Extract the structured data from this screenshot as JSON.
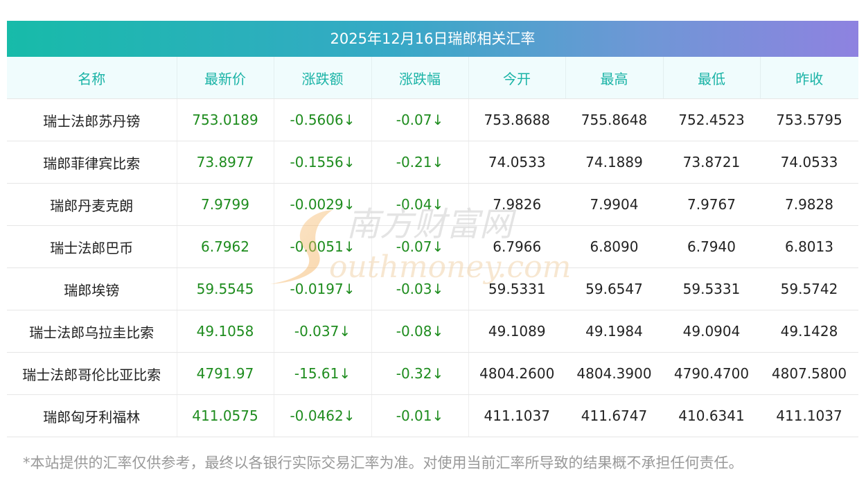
{
  "title": "2025年12月16日瑞郎相关汇率",
  "columns": [
    "名称",
    "最新价",
    "涨跌额",
    "涨跌幅",
    "今开",
    "最高",
    "最低",
    "昨收"
  ],
  "rows": [
    [
      "瑞士法郎苏丹镑",
      "753.0189",
      "-0.5606↓",
      "-0.07↓",
      "753.8688",
      "755.8648",
      "752.4523",
      "753.5795"
    ],
    [
      "瑞郎菲律宾比索",
      "73.8977",
      "-0.1556↓",
      "-0.21↓",
      "74.0533",
      "74.1889",
      "73.8721",
      "74.0533"
    ],
    [
      "瑞郎丹麦克朗",
      "7.9799",
      "-0.0029↓",
      "-0.04↓",
      "7.9826",
      "7.9904",
      "7.9767",
      "7.9828"
    ],
    [
      "瑞士法郎巴币",
      "6.7962",
      "-0.0051↓",
      "-0.07↓",
      "6.7966",
      "6.8090",
      "6.7940",
      "6.8013"
    ],
    [
      "瑞郎埃镑",
      "59.5545",
      "-0.0197↓",
      "-0.03↓",
      "59.5331",
      "59.6547",
      "59.5331",
      "59.5742"
    ],
    [
      "瑞士法郎乌拉圭比索",
      "49.1058",
      "-0.037↓",
      "-0.08↓",
      "49.1089",
      "49.1984",
      "49.0904",
      "49.1428"
    ],
    [
      "瑞士法郎哥伦比亚比索",
      "4791.97",
      "-15.61↓",
      "-0.32↓",
      "4804.2600",
      "4804.3900",
      "4790.4700",
      "4807.5800"
    ],
    [
      "瑞郎匈牙利福林",
      "411.0575",
      "-0.0462↓",
      "-0.01↓",
      "411.1037",
      "411.6747",
      "410.6341",
      "411.1037"
    ]
  ],
  "watermark": {
    "cn": "南方财富网",
    "en": "outhmoney.com"
  },
  "note": "*本站提供的汇率仅供参考，最终以各银行实际交易汇率为准。对使用当前汇率所导致的结果概不承担任何责任。",
  "colors": {
    "header_gradient_start": "#17bba9",
    "header_gradient_end": "#8e82e0",
    "column_header_text": "#1ab3a6",
    "positive_value": "#1e8c1e",
    "note_text": "#999999"
  }
}
